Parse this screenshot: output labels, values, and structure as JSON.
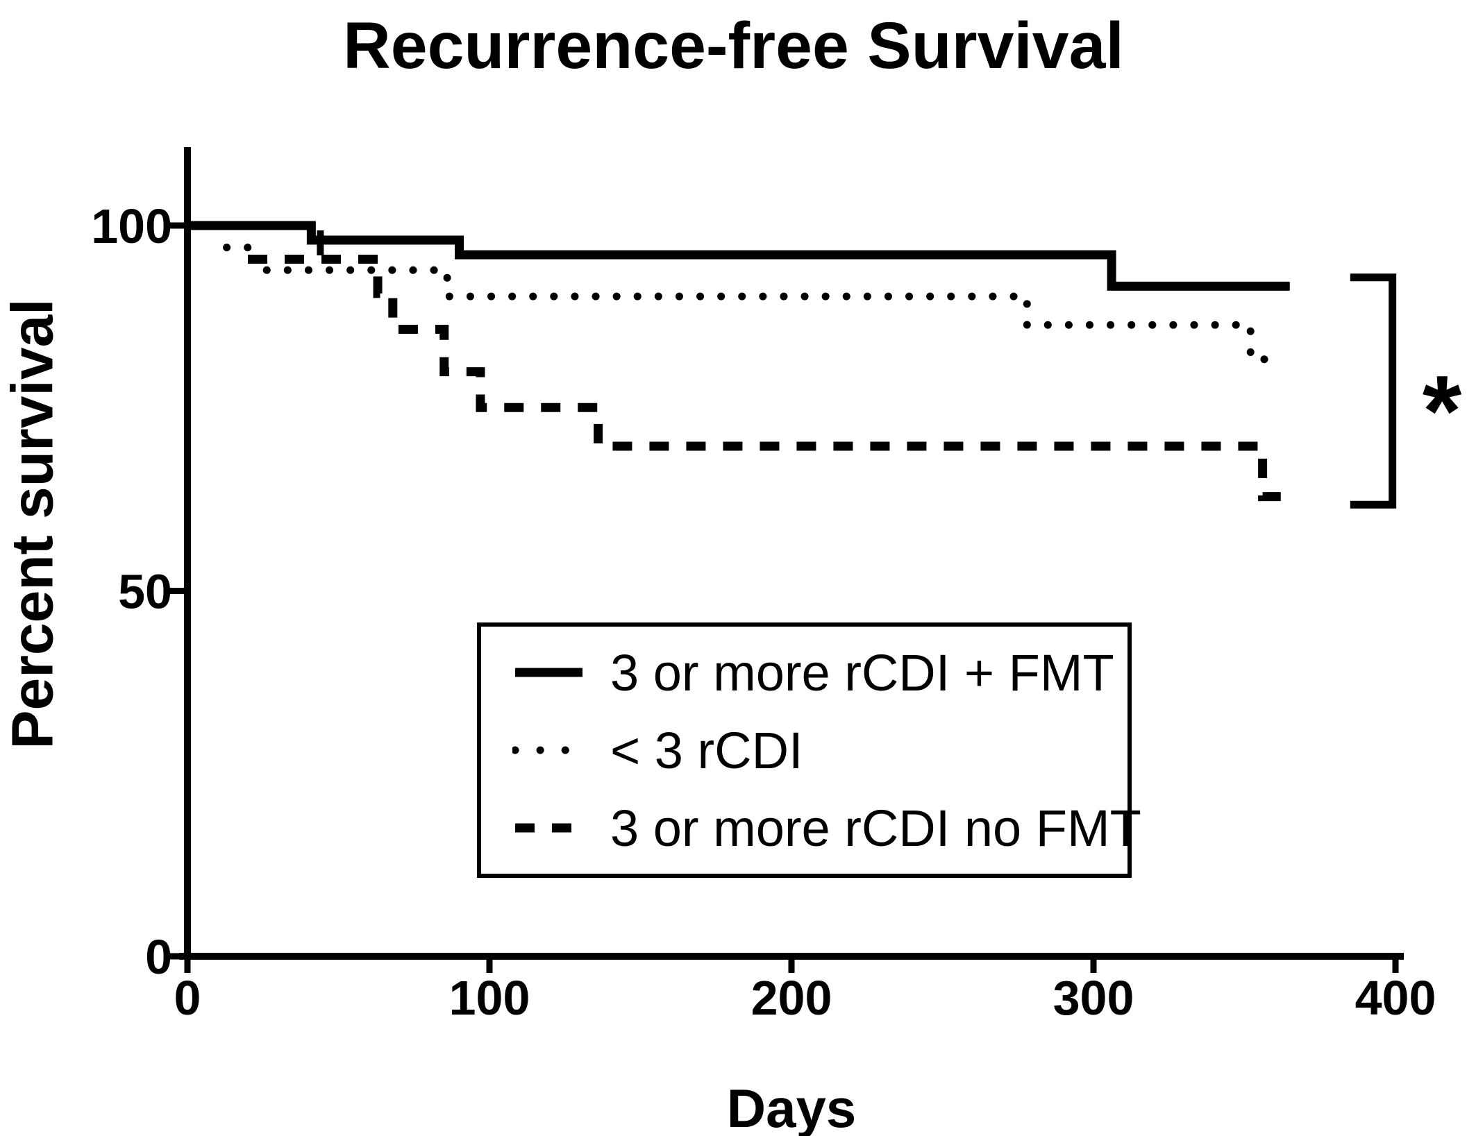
{
  "figure": {
    "background": "#ffffff",
    "ink_color": "#000000"
  },
  "chart_data": {
    "type": "line",
    "subtype": "kaplan-meier-step-curves",
    "title": "Recurrence-free Survival",
    "xlabel": "Days",
    "ylabel": "Percent survival",
    "xlim": [
      0,
      400
    ],
    "ylim": [
      0,
      100
    ],
    "x_ticks": [
      0,
      100,
      200,
      300,
      400
    ],
    "y_ticks": [
      0,
      50,
      100
    ],
    "grid": false,
    "legend_position": "center-bottom-boxed",
    "series": [
      {
        "name": "3 or more rCDI + FMT",
        "line_style": "solid",
        "style": {
          "stroke": "#000000",
          "width": 13,
          "dash": "",
          "legend_dash": "",
          "cap": "butt"
        },
        "points": [
          [
            0,
            100
          ],
          [
            41,
            100
          ],
          [
            41,
            98
          ],
          [
            90,
            98
          ],
          [
            90,
            96
          ],
          [
            306,
            96
          ],
          [
            306,
            91.7
          ],
          [
            365,
            91.7
          ]
        ]
      },
      {
        "name": "< 3 rCDI",
        "line_style": "dotted",
        "style": {
          "stroke": "#000000",
          "width": 11,
          "dash": "0.1 30",
          "legend_dash": "0.1 36",
          "cap": "round"
        },
        "points": [
          [
            13,
            97
          ],
          [
            23,
            97
          ],
          [
            23,
            93.9
          ],
          [
            86,
            93.9
          ],
          [
            86,
            90.3
          ],
          [
            278,
            90.3
          ],
          [
            278,
            86.4
          ],
          [
            352,
            86.4
          ],
          [
            352,
            81.7
          ],
          [
            363,
            81.7
          ]
        ]
      },
      {
        "name": "3 or more rCDI no FMT",
        "line_style": "dashed",
        "style": {
          "stroke": "#000000",
          "width": 13,
          "dash": "28 25",
          "legend_dash": "28 25",
          "cap": "butt"
        },
        "points": [
          [
            20,
            95.4
          ],
          [
            63,
            95.4
          ],
          [
            63,
            90.7
          ],
          [
            68,
            90.7
          ],
          [
            68,
            85.8
          ],
          [
            85,
            85.8
          ],
          [
            85,
            80
          ],
          [
            97,
            80
          ],
          [
            97,
            75.1
          ],
          [
            136,
            75.1
          ],
          [
            136,
            69.8
          ],
          [
            356,
            69.8
          ],
          [
            356,
            62.9
          ],
          [
            364,
            62.9
          ]
        ]
      }
    ],
    "censor_marks": [
      {
        "series_index": 0,
        "day": 44,
        "pct": 98
      }
    ],
    "annotation": {
      "symbol": "*",
      "bracket": {
        "day_arm": 385,
        "day_line": 399,
        "top_pct": 92.9,
        "bottom_pct": 61.8
      }
    }
  }
}
